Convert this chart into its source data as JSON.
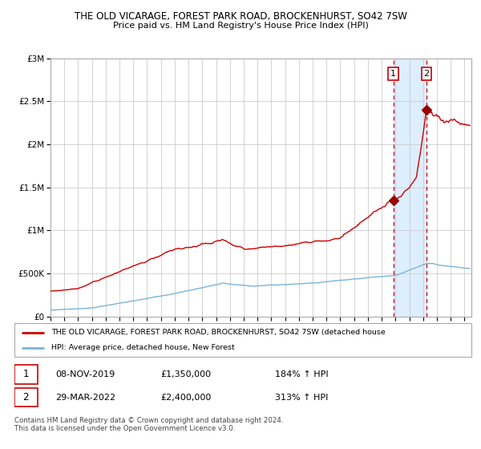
{
  "title": "THE OLD VICARAGE, FOREST PARK ROAD, BROCKENHURST, SO42 7SW",
  "subtitle": "Price paid vs. HM Land Registry's House Price Index (HPI)",
  "legend_line1": "THE OLD VICARAGE, FOREST PARK ROAD, BROCKENHURST, SO42 7SW (detached house",
  "legend_line2": "HPI: Average price, detached house, New Forest",
  "purchase1_date": "08-NOV-2019",
  "purchase1_price": 1350000,
  "purchase1_pct": "184%",
  "purchase2_date": "29-MAR-2022",
  "purchase2_price": 2400000,
  "purchase2_pct": "313%",
  "footer": "Contains HM Land Registry data © Crown copyright and database right 2024.\nThis data is licensed under the Open Government Licence v3.0.",
  "hpi_color": "#7ab4d8",
  "price_color": "#cc0000",
  "marker_color": "#990000",
  "vline_color": "#cc0000",
  "shade_color": "#ddeeff",
  "grid_color": "#cccccc",
  "bg_color": "#ffffff",
  "ylim": [
    0,
    3000000
  ],
  "xmin": 1995,
  "xmax": 2025.5,
  "purchase1_x": 2019.85,
  "purchase2_x": 2022.25
}
